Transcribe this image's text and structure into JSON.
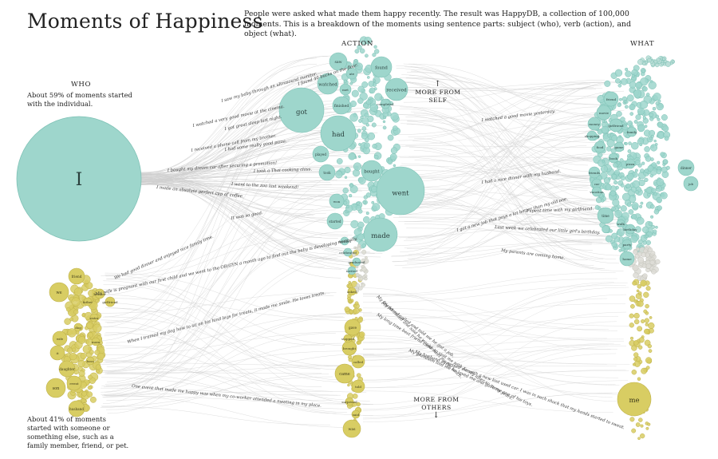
{
  "title": "Moments of Happiness",
  "intro": "People were asked what made them happy recently. The result was HappyDB, a collection of 100,000 moments. This is a breakdown of the moments using sentence parts: subject (who), verb (action), and object (what).",
  "columns": {
    "who": "WHO",
    "action": "ACTION",
    "what": "WHAT"
  },
  "who_note": "About 59% of moments started with the individual.",
  "others_note": "About 41% of moments started with someone or something else, such as a family member, friend, or pet.",
  "more_self": {
    "label": "MORE FROM SELF",
    "arrow": "↑"
  },
  "more_others": {
    "label": "MORE FROM OTHERS",
    "arrow": "↓"
  },
  "colors": {
    "self": "#9ed6cc",
    "self_stroke": "#7fc2b6",
    "others": "#d8cd63",
    "others_stroke": "#bfb24a",
    "link": "#cfcfcf",
    "grey": "#cfcfcb"
  },
  "share": {
    "self_pct": 59,
    "others_pct": 41
  },
  "who_nodes": {
    "self": {
      "label": "I",
      "size": 59
    },
    "others": [
      "friend",
      "we",
      "brother",
      "father",
      "girlfriend",
      "son",
      "wife",
      "it",
      "daughter",
      "event",
      "husband",
      "sister",
      "dog",
      "mom",
      "boss"
    ]
  },
  "action_nodes": {
    "self": [
      "saw",
      "found",
      "watched",
      "received",
      "got",
      "finished",
      "had",
      "played",
      "took",
      "bought",
      "went",
      "won",
      "started",
      "made",
      "ate",
      "met",
      "completed",
      "decided",
      "celebrated",
      "graduated",
      "invited"
    ],
    "others": [
      "gave",
      "brought",
      "called",
      "came",
      "told",
      "was",
      "stopped",
      "surprised",
      "said",
      "asked"
    ]
  },
  "what_nodes": {
    "self": [
      "friend",
      "movie",
      "money",
      "girlfriend",
      "food",
      "shopping",
      "book",
      "game",
      "dinner",
      "friends",
      "car",
      "job",
      "vacation",
      "time",
      "home",
      "birthday",
      "pizza",
      "family",
      "party",
      "walk"
    ],
    "others": [
      "me"
    ]
  },
  "quotes": [
    "I saw my baby through an ultrasound monitor.",
    "I found 40 bucks on the floor.",
    "I watched a very good movie at the cinema.",
    "I got great sleep last night.",
    "I received a phone call from my brother.",
    "I had some really good pizza.",
    "I bought my dream car after securing a promotion!",
    "I took a Thai cooking class.",
    "I made an absolute perfect cup of coffee.",
    "I went to the zoo last weekend!",
    "I watched a good movie yesterday.",
    "I had a nice dinner with my husband.",
    "I got a new job that pays a lot better than my old one.",
    "I spent time with my girlfriend.",
    "Last week we celebrated our little girl's birthday.",
    "My parents are coming home.",
    "We had good dinner and enjoyed nice family time.",
    "It was so good.",
    "My wife is pregnant with our first child and we went to the OB/GYN a month ago to find out the baby is developing normally.",
    "When I trained my dog how to sit on his hind legs for treats, it made me smile. He loves treats.",
    "One event that made me happy was when my co-worker attended a meeting in my place.",
    "My long time best friend came to visit me with family after so many years.",
    "My friend called and told me he got a job.",
    "My grandson told me he loved me and gave me one of his toys.",
    "My friend called and said he would meet me for lunch.",
    "My husband surprised me with a new lost used car. I was in such shock that my hands started to sweat."
  ]
}
